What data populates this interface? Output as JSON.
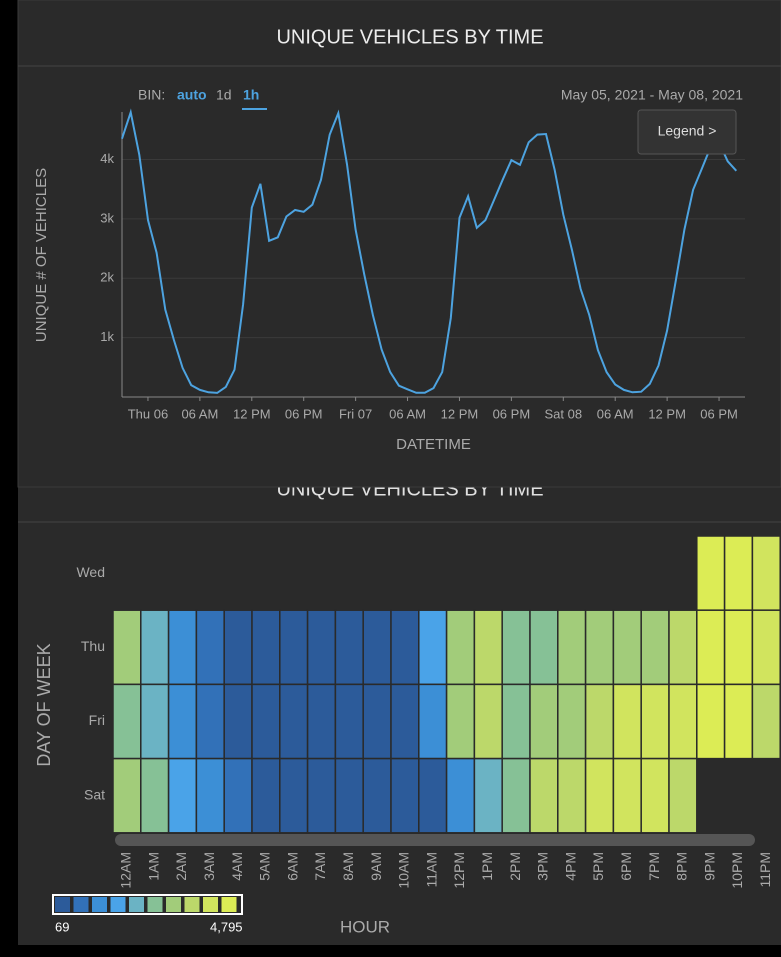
{
  "ui": {
    "bin_label": "BIN:",
    "bin_options": [
      "auto",
      "1d",
      "1h"
    ],
    "date_range": "May 05, 2021 - May 08, 2021",
    "legend_button": "Legend >"
  },
  "chart_data": [
    {
      "type": "line",
      "title": "UNIQUE VEHICLES BY TIME",
      "xlabel": "DATETIME",
      "ylabel": "UNIQUE # OF VEHICLES",
      "color": "#4da3e0",
      "grid": true,
      "x": [
        "2021-05-05T21:00",
        "2021-05-05T22:00",
        "2021-05-05T23:00",
        "2021-05-06T00:00",
        "2021-05-06T01:00",
        "2021-05-06T02:00",
        "2021-05-06T03:00",
        "2021-05-06T04:00",
        "2021-05-06T05:00",
        "2021-05-06T06:00",
        "2021-05-06T07:00",
        "2021-05-06T08:00",
        "2021-05-06T09:00",
        "2021-05-06T10:00",
        "2021-05-06T11:00",
        "2021-05-06T12:00",
        "2021-05-06T13:00",
        "2021-05-06T14:00",
        "2021-05-06T15:00",
        "2021-05-06T16:00",
        "2021-05-06T17:00",
        "2021-05-06T18:00",
        "2021-05-06T19:00",
        "2021-05-06T20:00",
        "2021-05-06T21:00",
        "2021-05-06T22:00",
        "2021-05-06T23:00",
        "2021-05-07T00:00",
        "2021-05-07T01:00",
        "2021-05-07T02:00",
        "2021-05-07T03:00",
        "2021-05-07T04:00",
        "2021-05-07T05:00",
        "2021-05-07T06:00",
        "2021-05-07T07:00",
        "2021-05-07T08:00",
        "2021-05-07T09:00",
        "2021-05-07T10:00",
        "2021-05-07T11:00",
        "2021-05-07T12:00",
        "2021-05-07T13:00",
        "2021-05-07T14:00",
        "2021-05-07T15:00",
        "2021-05-07T16:00",
        "2021-05-07T17:00",
        "2021-05-07T18:00",
        "2021-05-07T19:00",
        "2021-05-07T20:00",
        "2021-05-07T21:00",
        "2021-05-07T22:00",
        "2021-05-07T23:00",
        "2021-05-08T00:00",
        "2021-05-08T01:00",
        "2021-05-08T02:00",
        "2021-05-08T03:00",
        "2021-05-08T04:00",
        "2021-05-08T05:00",
        "2021-05-08T06:00",
        "2021-05-08T07:00",
        "2021-05-08T08:00",
        "2021-05-08T09:00",
        "2021-05-08T10:00",
        "2021-05-08T11:00",
        "2021-05-08T12:00",
        "2021-05-08T13:00",
        "2021-05-08T14:00",
        "2021-05-08T15:00",
        "2021-05-08T16:00",
        "2021-05-08T17:00",
        "2021-05-08T18:00",
        "2021-05-08T19:00",
        "2021-05-08T20:00"
      ],
      "values": [
        4350,
        4795,
        4080,
        2980,
        2430,
        1470,
        960,
        490,
        200,
        120,
        80,
        69,
        170,
        460,
        1560,
        3190,
        3590,
        2630,
        2690,
        3040,
        3150,
        3120,
        3240,
        3660,
        4420,
        4780,
        3920,
        2820,
        2060,
        1380,
        800,
        420,
        190,
        130,
        70,
        72,
        150,
        420,
        1330,
        3020,
        3380,
        2850,
        2980,
        3320,
        3660,
        3990,
        3910,
        4290,
        4420,
        4430,
        3830,
        3070,
        2480,
        1820,
        1380,
        790,
        420,
        210,
        120,
        80,
        90,
        220,
        530,
        1120,
        1960,
        2820,
        3490,
        3840,
        4200,
        4290,
        3970,
        3810
      ],
      "xlim": [
        "2021-05-05T21:00",
        "2021-05-08T21:00"
      ],
      "xticks": [
        {
          "value": "2021-05-06T00:00",
          "label": "Thu 06"
        },
        {
          "value": "2021-05-06T06:00",
          "label": "06 AM"
        },
        {
          "value": "2021-05-06T12:00",
          "label": "12 PM"
        },
        {
          "value": "2021-05-06T18:00",
          "label": "06 PM"
        },
        {
          "value": "2021-05-07T00:00",
          "label": "Fri 07"
        },
        {
          "value": "2021-05-07T06:00",
          "label": "06 AM"
        },
        {
          "value": "2021-05-07T12:00",
          "label": "12 PM"
        },
        {
          "value": "2021-05-07T18:00",
          "label": "06 PM"
        },
        {
          "value": "2021-05-08T00:00",
          "label": "Sat 08"
        },
        {
          "value": "2021-05-08T06:00",
          "label": "06 AM"
        },
        {
          "value": "2021-05-08T12:00",
          "label": "12 PM"
        },
        {
          "value": "2021-05-08T18:00",
          "label": "06 PM"
        }
      ],
      "ylim": [
        0,
        4800
      ],
      "yticks": [
        {
          "value": 1000,
          "label": "1k"
        },
        {
          "value": 2000,
          "label": "2k"
        },
        {
          "value": 3000,
          "label": "3k"
        },
        {
          "value": 4000,
          "label": "4k"
        }
      ]
    },
    {
      "type": "heatmap",
      "title": "UNIQUE VEHICLES BY TIME",
      "xlabel": "HOUR",
      "ylabel": "DAY OF WEEK",
      "x_categories": [
        "12AM",
        "1AM",
        "2AM",
        "3AM",
        "4AM",
        "5AM",
        "6AM",
        "7AM",
        "8AM",
        "9AM",
        "10AM",
        "11AM",
        "12PM",
        "1PM",
        "2PM",
        "3PM",
        "4PM",
        "5PM",
        "6PM",
        "7PM",
        "8PM",
        "9PM",
        "10PM",
        "11PM"
      ],
      "y_categories": [
        "Wed",
        "Thu",
        "Fri",
        "Sat"
      ],
      "values": [
        [
          null,
          null,
          null,
          null,
          null,
          null,
          null,
          null,
          null,
          null,
          null,
          null,
          null,
          null,
          null,
          null,
          null,
          null,
          null,
          null,
          null,
          4350,
          4795,
          4080
        ],
        [
          2980,
          2430,
          1470,
          960,
          490,
          200,
          120,
          80,
          69,
          170,
          460,
          1560,
          3190,
          3590,
          2630,
          2690,
          3040,
          3150,
          3120,
          3240,
          3660,
          4420,
          4780,
          3920
        ],
        [
          2820,
          2060,
          1380,
          800,
          420,
          190,
          130,
          70,
          72,
          150,
          420,
          1330,
          3020,
          3380,
          2850,
          2980,
          3320,
          3660,
          3990,
          3910,
          4290,
          4420,
          4430,
          3830
        ],
        [
          3070,
          2480,
          1820,
          1380,
          790,
          420,
          210,
          120,
          80,
          90,
          220,
          530,
          1120,
          1960,
          2820,
          3490,
          3840,
          4200,
          4290,
          3970,
          3810,
          null,
          null,
          null
        ]
      ],
      "colorscale": [
        "#2c5b9a",
        "#3271b8",
        "#3c8fd6",
        "#4aa3e8",
        "#6bb3c4",
        "#86c196",
        "#a2cc7a",
        "#bcd86a",
        "#d1e45e",
        "#dcec55"
      ],
      "color_range": [
        69,
        {
          "value": 4795,
          "label": "4,795"
        }
      ]
    }
  ]
}
